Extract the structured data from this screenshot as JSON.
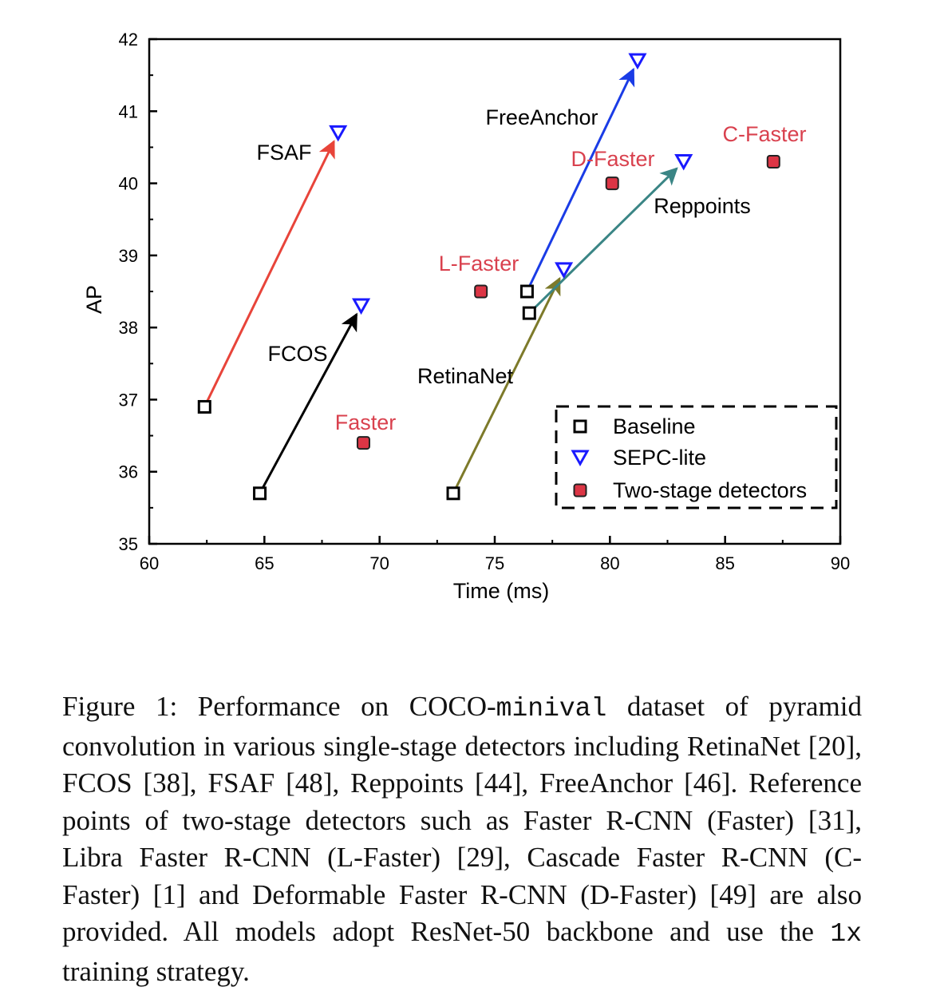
{
  "chart_data": {
    "type": "scatter",
    "xlabel": "Time (ms)",
    "ylabel": "AP",
    "xlim": [
      60,
      90
    ],
    "ylim": [
      35,
      42
    ],
    "x_ticks": [
      "60",
      "65",
      "70",
      "75",
      "80",
      "85",
      "90"
    ],
    "y_ticks": [
      "35",
      "36",
      "37",
      "38",
      "39",
      "40",
      "41",
      "42"
    ],
    "grid": false,
    "legend_position": "bottom-right",
    "legend": [
      {
        "name": "Baseline",
        "marker": "square-open",
        "color": "#000000"
      },
      {
        "name": "SEPC-lite",
        "marker": "triangle-down-open",
        "color": "#1a1aff"
      },
      {
        "name": "Two-stage detectors",
        "marker": "square-filled",
        "color": "#dc3545"
      }
    ],
    "series": [
      {
        "name": "Baseline",
        "points": [
          {
            "label": "FSAF",
            "x": 62.4,
            "y": 36.9
          },
          {
            "label": "FCOS",
            "x": 64.8,
            "y": 35.7
          },
          {
            "label": "RetinaNet",
            "x": 73.2,
            "y": 35.7
          },
          {
            "label": "FreeAnchor",
            "x": 76.4,
            "y": 38.5
          },
          {
            "label": "Reppoints",
            "x": 76.5,
            "y": 38.2
          }
        ]
      },
      {
        "name": "SEPC-lite",
        "points": [
          {
            "label": "FSAF",
            "x": 68.2,
            "y": 40.7
          },
          {
            "label": "FCOS",
            "x": 69.2,
            "y": 38.3
          },
          {
            "label": "RetinaNet",
            "x": 78.0,
            "y": 38.8
          },
          {
            "label": "FreeAnchor",
            "x": 81.2,
            "y": 41.7
          },
          {
            "label": "Reppoints",
            "x": 83.2,
            "y": 40.3
          }
        ]
      },
      {
        "name": "Two-stage detectors",
        "points": [
          {
            "label": "Faster",
            "x": 69.3,
            "y": 36.4
          },
          {
            "label": "L-Faster",
            "x": 74.4,
            "y": 38.5
          },
          {
            "label": "D-Faster",
            "x": 80.1,
            "y": 40.0
          },
          {
            "label": "C-Faster",
            "x": 87.1,
            "y": 40.3
          }
        ]
      }
    ],
    "arrows": [
      {
        "detector": "FSAF",
        "from": [
          62.4,
          36.9
        ],
        "to": [
          68.2,
          40.7
        ],
        "color": "#e8443a"
      },
      {
        "detector": "FCOS",
        "from": [
          64.8,
          35.7
        ],
        "to": [
          69.2,
          38.3
        ],
        "color": "#000000"
      },
      {
        "detector": "RetinaNet",
        "from": [
          73.2,
          35.7
        ],
        "to": [
          78.0,
          38.8
        ],
        "color": "#7d7a2a"
      },
      {
        "detector": "FreeAnchor",
        "from": [
          76.4,
          38.5
        ],
        "to": [
          81.2,
          41.7
        ],
        "color": "#1a3ce6"
      },
      {
        "detector": "Reppoints",
        "from": [
          76.5,
          38.2
        ],
        "to": [
          83.2,
          40.3
        ],
        "color": "#3a8585"
      }
    ],
    "annotations": [
      {
        "text": "FSAF",
        "color": "#000000"
      },
      {
        "text": "FCOS",
        "color": "#000000"
      },
      {
        "text": "RetinaNet",
        "color": "#000000"
      },
      {
        "text": "FreeAnchor",
        "color": "#000000"
      },
      {
        "text": "Reppoints",
        "color": "#000000"
      },
      {
        "text": "Faster",
        "color": "#d9414e"
      },
      {
        "text": "L-Faster",
        "color": "#d9414e"
      },
      {
        "text": "D-Faster",
        "color": "#d9414e"
      },
      {
        "text": "C-Faster",
        "color": "#d9414e"
      }
    ]
  },
  "caption": {
    "prefix": "Figure 1:",
    "part1": " Performance on COCO-",
    "mono1": "minival",
    "part2": " dataset of pyramid convolution in various single-stage detectors including RetinaNet [20], FCOS [38], FSAF [48], Reppoints [44], FreeAnchor [46]. Reference points of two-stage detectors such as Faster R-CNN (Faster) [31], Libra Faster R-CNN (L-Faster) [29], Cascade Faster R-CNN (C-Faster) [1] and Deformable Faster R-CNN (D-Faster) [49] are also provided. All models adopt ResNet-50 backbone and use the ",
    "mono2": "1x",
    "part3": " training strategy."
  }
}
